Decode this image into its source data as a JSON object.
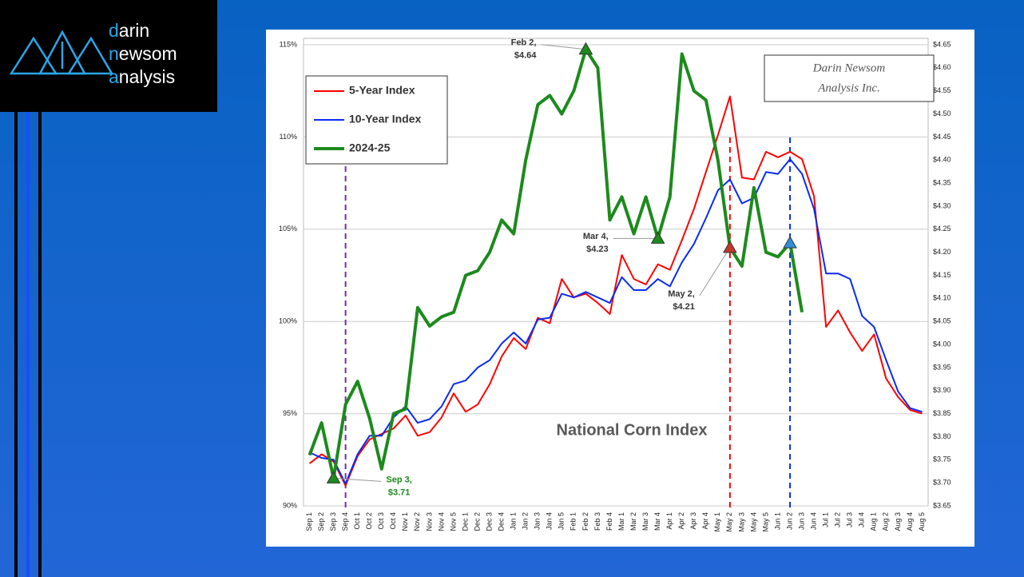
{
  "logo": [
    "darin",
    "newsom",
    "analysis"
  ],
  "chart_data": {
    "type": "line",
    "title": "National Corn Index",
    "watermark": [
      "Darin Newsom",
      "Analysis Inc."
    ],
    "categories": [
      "Sep 1",
      "Sep 2",
      "Sep 3",
      "Sep 4",
      "Oct 1",
      "Oct 2",
      "Oct 3",
      "Oct 4",
      "Nov 1",
      "Nov 2",
      "Nov 3",
      "Nov 4",
      "Nov 5",
      "Dec 1",
      "Dec 2",
      "Dec 3",
      "Dec 4",
      "Jan 1",
      "Jan 2",
      "Jan 3",
      "Jan 4",
      "Jan 5",
      "Feb 1",
      "Feb 2",
      "Feb 3",
      "Feb 4",
      "Mar 1",
      "Mar 2",
      "Mar 3",
      "Mar 4",
      "Apr 1",
      "Apr 2",
      "Apr 3",
      "Apr 4",
      "May 1",
      "May 2",
      "May 3",
      "May 4",
      "May 5",
      "Jun 1",
      "Jun 2",
      "Jun 3",
      "Jun 4",
      "Jul 1",
      "Jul 2",
      "Jul 3",
      "Jul 4",
      "Aug 1",
      "Aug 2",
      "Aug 3",
      "Aug 4",
      "Aug 5"
    ],
    "series": [
      {
        "name": "5-Year Index",
        "color": "#ff0000",
        "axis": "y",
        "values": [
          92.3,
          92.8,
          92.4,
          91.1,
          92.7,
          93.6,
          93.9,
          94.2,
          94.9,
          93.8,
          94.0,
          94.8,
          96.1,
          95.1,
          95.5,
          96.6,
          98.1,
          99.1,
          98.5,
          100.2,
          99.9,
          102.3,
          101.3,
          101.5,
          101.0,
          100.4,
          103.6,
          102.3,
          102.0,
          103.1,
          102.8,
          104.4,
          106.1,
          108.1,
          110.1,
          112.2,
          107.8,
          107.7,
          109.2,
          108.9,
          109.2,
          108.8,
          106.8,
          99.7,
          100.6,
          99.4,
          98.4,
          99.3,
          96.9,
          95.9,
          95.2,
          95.0
        ]
      },
      {
        "name": "10-Year Index",
        "color": "#0a2cf0",
        "axis": "y",
        "values": [
          92.9,
          92.6,
          92.5,
          91.2,
          92.8,
          93.8,
          93.8,
          94.8,
          95.4,
          94.5,
          94.7,
          95.4,
          96.6,
          96.8,
          97.5,
          97.9,
          98.8,
          99.4,
          98.8,
          100.1,
          100.2,
          101.5,
          101.3,
          101.6,
          101.3,
          101.0,
          102.4,
          101.7,
          101.7,
          102.3,
          101.9,
          103.2,
          104.2,
          105.6,
          107.1,
          107.7,
          106.4,
          106.7,
          108.1,
          108.0,
          108.8,
          108.0,
          106.1,
          102.6,
          102.6,
          102.3,
          100.3,
          99.7,
          97.9,
          96.2,
          95.3,
          95.1
        ]
      },
      {
        "name": "2024-25",
        "color": "#1c8a1c",
        "axis": "y2",
        "values": [
          3.76,
          3.83,
          3.71,
          3.87,
          3.92,
          3.84,
          3.73,
          3.85,
          3.86,
          4.08,
          4.04,
          4.06,
          4.07,
          4.15,
          4.16,
          4.2,
          4.27,
          4.24,
          4.4,
          4.52,
          4.54,
          4.5,
          4.55,
          4.64,
          4.6,
          4.27,
          4.32,
          4.24,
          4.32,
          4.23,
          4.32,
          4.63,
          4.55,
          4.53,
          4.4,
          4.21,
          4.17,
          4.34,
          4.2,
          4.19,
          4.22,
          4.07,
          null,
          null,
          null,
          null,
          null,
          null,
          null,
          null,
          null,
          null
        ]
      }
    ],
    "ylim": [
      90,
      115
    ],
    "yticks": [
      {
        "value": 90,
        "label": "90%"
      },
      {
        "value": 95,
        "label": "95%"
      },
      {
        "value": 100,
        "label": "100%"
      },
      {
        "value": 105,
        "label": "105%"
      },
      {
        "value": 110,
        "label": "110%"
      },
      {
        "value": 115,
        "label": "115%"
      }
    ],
    "y2lim": [
      3.65,
      4.65
    ],
    "y2ticks": [
      {
        "value": 3.65,
        "label": "$3.65"
      },
      {
        "value": 3.7,
        "label": "$3.70"
      },
      {
        "value": 3.75,
        "label": "$3.75"
      },
      {
        "value": 3.8,
        "label": "$3.80"
      },
      {
        "value": 3.85,
        "label": "$3.85"
      },
      {
        "value": 3.9,
        "label": "$3.90"
      },
      {
        "value": 3.95,
        "label": "$3.95"
      },
      {
        "value": 4.0,
        "label": "$4.00"
      },
      {
        "value": 4.05,
        "label": "$4.05"
      },
      {
        "value": 4.1,
        "label": "$4.10"
      },
      {
        "value": 4.15,
        "label": "$4.15"
      },
      {
        "value": 4.2,
        "label": "$4.20"
      },
      {
        "value": 4.25,
        "label": "$4.25"
      },
      {
        "value": 4.3,
        "label": "$4.30"
      },
      {
        "value": 4.35,
        "label": "$4.35"
      },
      {
        "value": 4.4,
        "label": "$4.40"
      },
      {
        "value": 4.45,
        "label": "$4.45"
      },
      {
        "value": 4.5,
        "label": "$4.50"
      },
      {
        "value": 4.55,
        "label": "$4.55"
      },
      {
        "value": 4.6,
        "label": "$4.60"
      },
      {
        "value": 4.65,
        "label": "$4.65"
      }
    ],
    "grid": true,
    "legend": "upper left",
    "vlines": [
      {
        "category": "Sep 4",
        "color": "#7030a0"
      },
      {
        "category": "May 2",
        "color": "#ff0000"
      },
      {
        "category": "Jun 2",
        "color": "#0a2cf0"
      }
    ],
    "annotations": [
      {
        "category": "Sep 3",
        "lines": [
          "Sep 3,",
          "$3.71"
        ],
        "color": "#1c8a1c",
        "marker_color": "#1c8a1c"
      },
      {
        "category": "Feb 2",
        "lines": [
          "Feb 2,",
          "$4.64"
        ],
        "color": "#333333",
        "marker_color": "#1c8a1c"
      },
      {
        "category": "Mar 4",
        "lines": [
          "Mar 4,",
          "$4.23"
        ],
        "color": "#333333",
        "marker_color": "#1c8a1c"
      },
      {
        "category": "May 2",
        "lines": [
          "May 2,",
          "$4.21"
        ],
        "color": "#333333",
        "marker_color": "#c0392b"
      },
      {
        "category": "Jun 2",
        "lines": [],
        "color": "#333333",
        "marker_color": "#2f8fd8"
      }
    ]
  }
}
